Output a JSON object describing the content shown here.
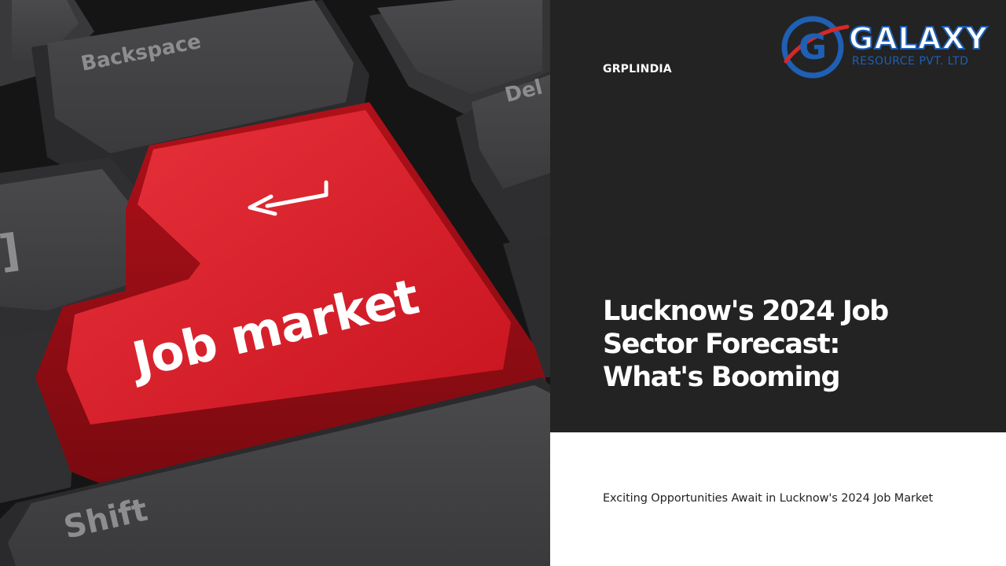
{
  "photo": {
    "key_backspace": "Backspace",
    "key_delete": "Del",
    "key_shift": "Shift",
    "key_enter": "Job market",
    "key_edge": "]"
  },
  "logo": {
    "letter": "G",
    "word": "GALAXY",
    "sub": "RESOURCE PVT. LTD"
  },
  "brand": "GRPLINDIA",
  "headline": {
    "line1": "Lucknow's 2024 Job",
    "line2": "Sector Forecast:",
    "line3": "What's Booming"
  },
  "subtitle": "Exciting Opportunities Await in Lucknow's 2024 Job Market",
  "colors": {
    "panel": "#232323",
    "enter_key": "#d81e2c",
    "logo_blue": "#1f5fb4",
    "logo_red": "#d62828"
  }
}
